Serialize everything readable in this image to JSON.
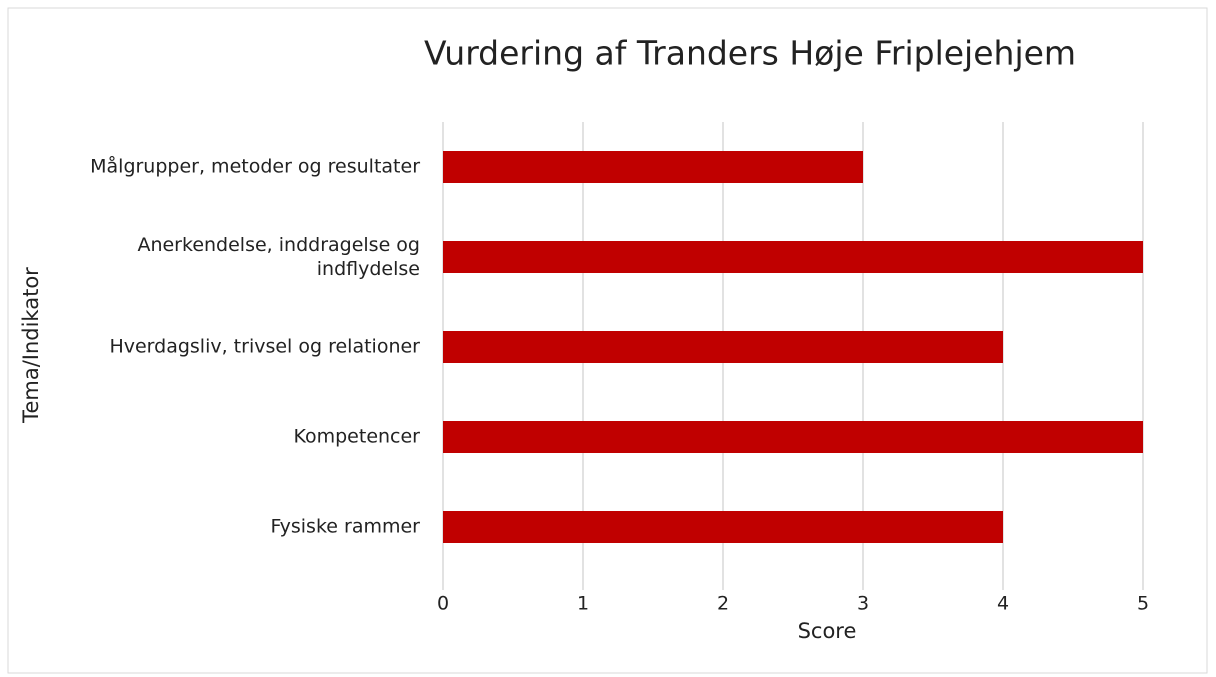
{
  "chart_data": {
    "type": "bar",
    "orientation": "horizontal",
    "title": "Vurdering af Tranders Høje Friplejehjem",
    "x_label": "Score",
    "y_label": "Tema/Indikator",
    "categories": [
      "Målgrupper, metoder og resultater",
      "Anerkendelse, inddragelse og indflydelse",
      "Hverdagsliv, trivsel og relationer",
      "Kompetencer",
      "Fysiske rammer"
    ],
    "values": [
      3,
      5,
      4,
      5,
      4
    ],
    "color": "#c00000",
    "xlim": [
      0,
      5
    ],
    "xticks": [
      0,
      1,
      2,
      3,
      4,
      5
    ],
    "grid": true
  }
}
